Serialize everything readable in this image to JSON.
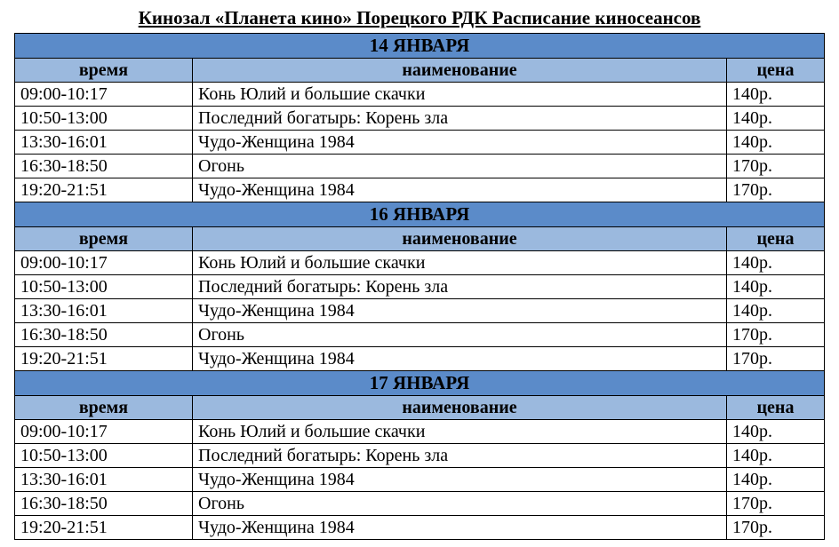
{
  "title": "Кинозал «Планета кино» Порецкого РДК Расписание киносеансов",
  "columns": {
    "time": "время",
    "name": "наименование",
    "price": "цена"
  },
  "colors": {
    "date_bg": "#5b8bc9",
    "header_bg": "#9bb9de",
    "row_bg": "#ffffff",
    "border": "#000000",
    "text": "#000000"
  },
  "column_widths": {
    "time": 200,
    "price": 110
  },
  "font": {
    "title_size": 21,
    "cell_size": 20,
    "family": "Times New Roman"
  },
  "days": [
    {
      "date": "14 ЯНВАРЯ",
      "sessions": [
        {
          "time": "09:00-10:17",
          "name": "Конь Юлий и большие скачки",
          "price": "140р."
        },
        {
          "time": "10:50-13:00",
          "name": "Последний богатырь: Корень зла",
          "price": "140р."
        },
        {
          "time": "13:30-16:01",
          "name": "Чудо-Женщина 1984",
          "price": "140р."
        },
        {
          "time": "16:30-18:50",
          "name": "Огонь",
          "price": "170р."
        },
        {
          "time": "19:20-21:51",
          "name": "Чудо-Женщина 1984",
          "price": "170р."
        }
      ]
    },
    {
      "date": "16 ЯНВАРЯ",
      "sessions": [
        {
          "time": "09:00-10:17",
          "name": "Конь Юлий и большие скачки",
          "price": "140р."
        },
        {
          "time": "10:50-13:00",
          "name": "Последний богатырь: Корень зла",
          "price": "140р."
        },
        {
          "time": "13:30-16:01",
          "name": "Чудо-Женщина 1984",
          "price": "140р."
        },
        {
          "time": "16:30-18:50",
          "name": "Огонь",
          "price": "170р."
        },
        {
          "time": "19:20-21:51",
          "name": "Чудо-Женщина 1984",
          "price": "170р."
        }
      ]
    },
    {
      "date": "17 ЯНВАРЯ",
      "sessions": [
        {
          "time": "09:00-10:17",
          "name": "Конь Юлий и большие скачки",
          "price": "140р."
        },
        {
          "time": "10:50-13:00",
          "name": "Последний богатырь: Корень зла",
          "price": "140р."
        },
        {
          "time": "13:30-16:01",
          "name": "Чудо-Женщина 1984",
          "price": "140р."
        },
        {
          "time": "16:30-18:50",
          "name": "Огонь",
          "price": "170р."
        },
        {
          "time": "19:20-21:51",
          "name": "Чудо-Женщина 1984",
          "price": "170р."
        }
      ]
    }
  ]
}
